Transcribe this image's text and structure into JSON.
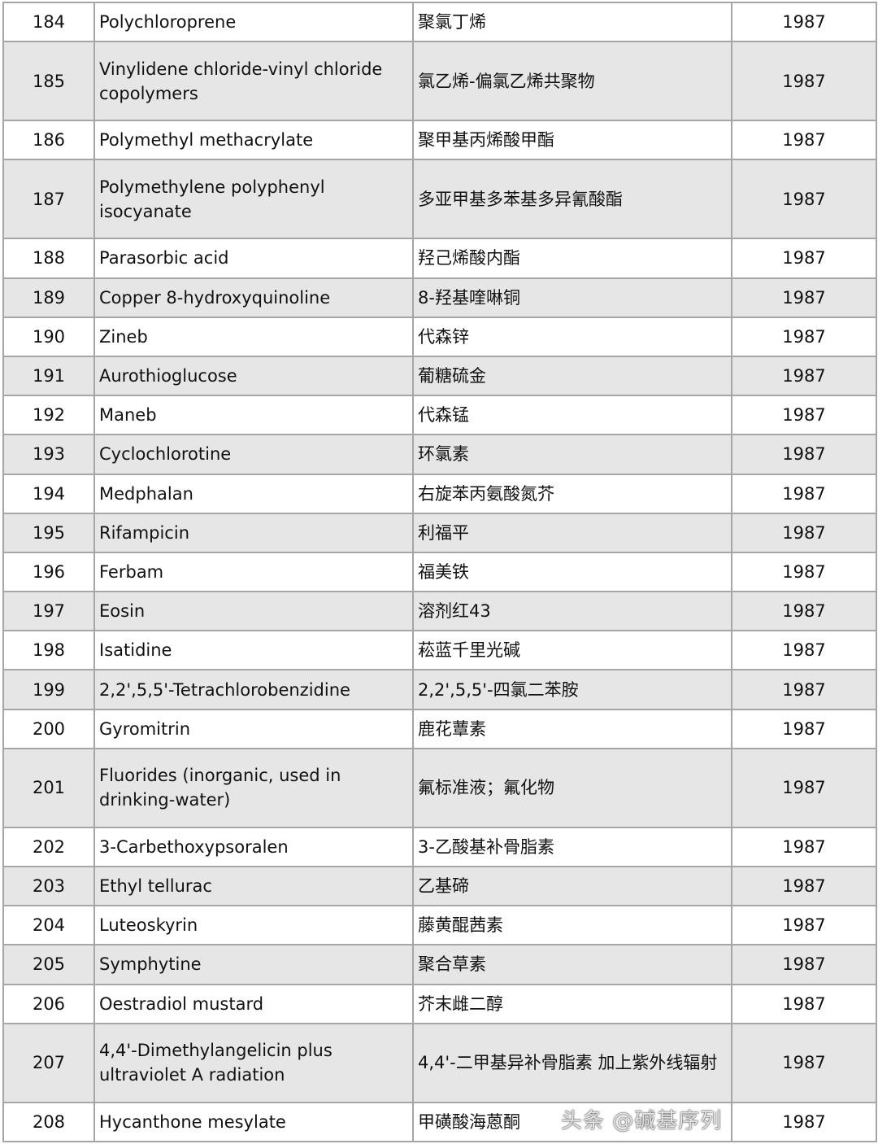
{
  "table": {
    "rows": [
      {
        "no": "184",
        "en": "Polychloroprene",
        "cn": "聚氯丁烯",
        "year": "1987"
      },
      {
        "no": "185",
        "en": "Vinylidene chloride-vinyl chloride copolymers",
        "cn": "氯乙烯-偏氯乙烯共聚物",
        "year": "1987"
      },
      {
        "no": "186",
        "en": "Polymethyl methacrylate",
        "cn": "聚甲基丙烯酸甲酯",
        "year": "1987"
      },
      {
        "no": "187",
        "en": "Polymethylene polyphenyl isocyanate",
        "cn": "多亚甲基多苯基多异氰酸酯",
        "year": "1987"
      },
      {
        "no": "188",
        "en": "Parasorbic acid",
        "cn": "羟己烯酸内酯",
        "year": "1987"
      },
      {
        "no": "189",
        "en": "Copper 8-hydroxyquinoline",
        "cn": "8-羟基喹啉铜",
        "year": "1987"
      },
      {
        "no": "190",
        "en": "Zineb",
        "cn": "代森锌",
        "year": "1987"
      },
      {
        "no": "191",
        "en": "Aurothioglucose",
        "cn": "葡糖硫金",
        "year": "1987"
      },
      {
        "no": "192",
        "en": "Maneb",
        "cn": "代森锰",
        "year": "1987"
      },
      {
        "no": "193",
        "en": "Cyclochlorotine",
        "cn": "环氯素",
        "year": "1987"
      },
      {
        "no": "194",
        "en": "Medphalan",
        "cn": "右旋苯丙氨酸氮芥",
        "year": "1987"
      },
      {
        "no": "195",
        "en": "Rifampicin",
        "cn": "利福平",
        "year": "1987"
      },
      {
        "no": "196",
        "en": "Ferbam",
        "cn": "福美铁",
        "year": "1987"
      },
      {
        "no": "197",
        "en": "Eosin",
        "cn": "溶剂红43",
        "year": "1987"
      },
      {
        "no": "198",
        "en": "Isatidine",
        "cn": "菘蓝千里光碱",
        "year": "1987"
      },
      {
        "no": "199",
        "en": "2,2',5,5'-Tetrachlorobenzidine",
        "cn": "2,2',5,5'-四氯二苯胺",
        "year": "1987"
      },
      {
        "no": "200",
        "en": "Gyromitrin",
        "cn": "鹿花蕈素",
        "year": "1987"
      },
      {
        "no": "201",
        "en": "Fluorides (inorganic, used in drinking-water)",
        "cn": "氟标准液；氟化物",
        "year": "1987"
      },
      {
        "no": "202",
        "en": "3-Carbethoxypsoralen",
        "cn": "3-乙酸基补骨脂素",
        "year": "1987"
      },
      {
        "no": "203",
        "en": "Ethyl tellurac",
        "cn": "乙基碲",
        "year": "1987"
      },
      {
        "no": "204",
        "en": "Luteoskyrin",
        "cn": "藤黄醌茜素",
        "year": "1987"
      },
      {
        "no": "205",
        "en": "Symphytine",
        "cn": "聚合草素",
        "year": "1987"
      },
      {
        "no": "206",
        "en": "Oestradiol mustard",
        "cn": "芥末雌二醇",
        "year": "1987"
      },
      {
        "no": "207",
        "en": "4,4'-Dimethylangelicin plus ultraviolet A radiation",
        "cn": "4,4'-二甲基异补骨脂素  加上紫外线辐射",
        "year": "1987"
      },
      {
        "no": "208",
        "en": "Hycanthone mesylate",
        "cn": "甲磺酸海蒽酮",
        "year": "1987"
      }
    ]
  },
  "watermark": "头条 @碱基序列"
}
